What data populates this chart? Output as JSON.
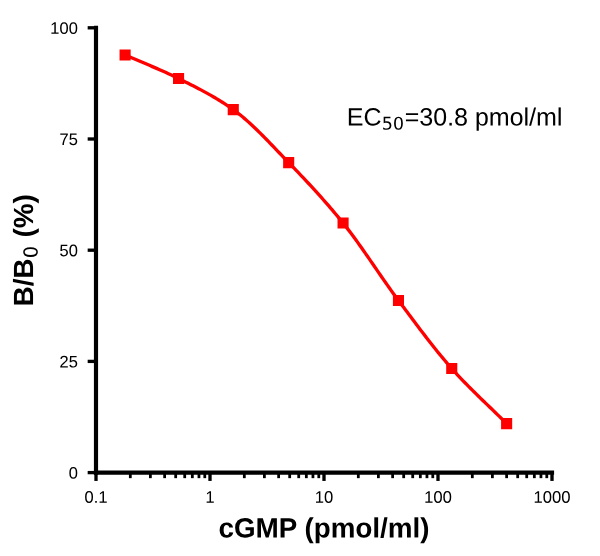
{
  "chart_data": {
    "type": "line",
    "xlabel": "cGMP (pmol/ml)",
    "ylabel": "B/B$_{0}$ (%)",
    "x": [
      0.18,
      0.53,
      1.6,
      4.9,
      14.7,
      45,
      132,
      400
    ],
    "series": [
      {
        "color": "#ff0000",
        "values": [
          93.9,
          88.6,
          81.6,
          69.7,
          56.1,
          38.7,
          23.4,
          11
        ]
      }
    ],
    "marker": "square",
    "log": "x",
    "xlim": [
      0.1,
      1000
    ],
    "xticks": [
      0.1,
      1,
      10,
      100,
      1000
    ],
    "ylim": [
      0,
      100
    ],
    "yticks": [
      0,
      25,
      50,
      75,
      100
    ],
    "grid": false,
    "annotations": [
      "EC$_{50}$=30.8 pmol/ml"
    ]
  }
}
